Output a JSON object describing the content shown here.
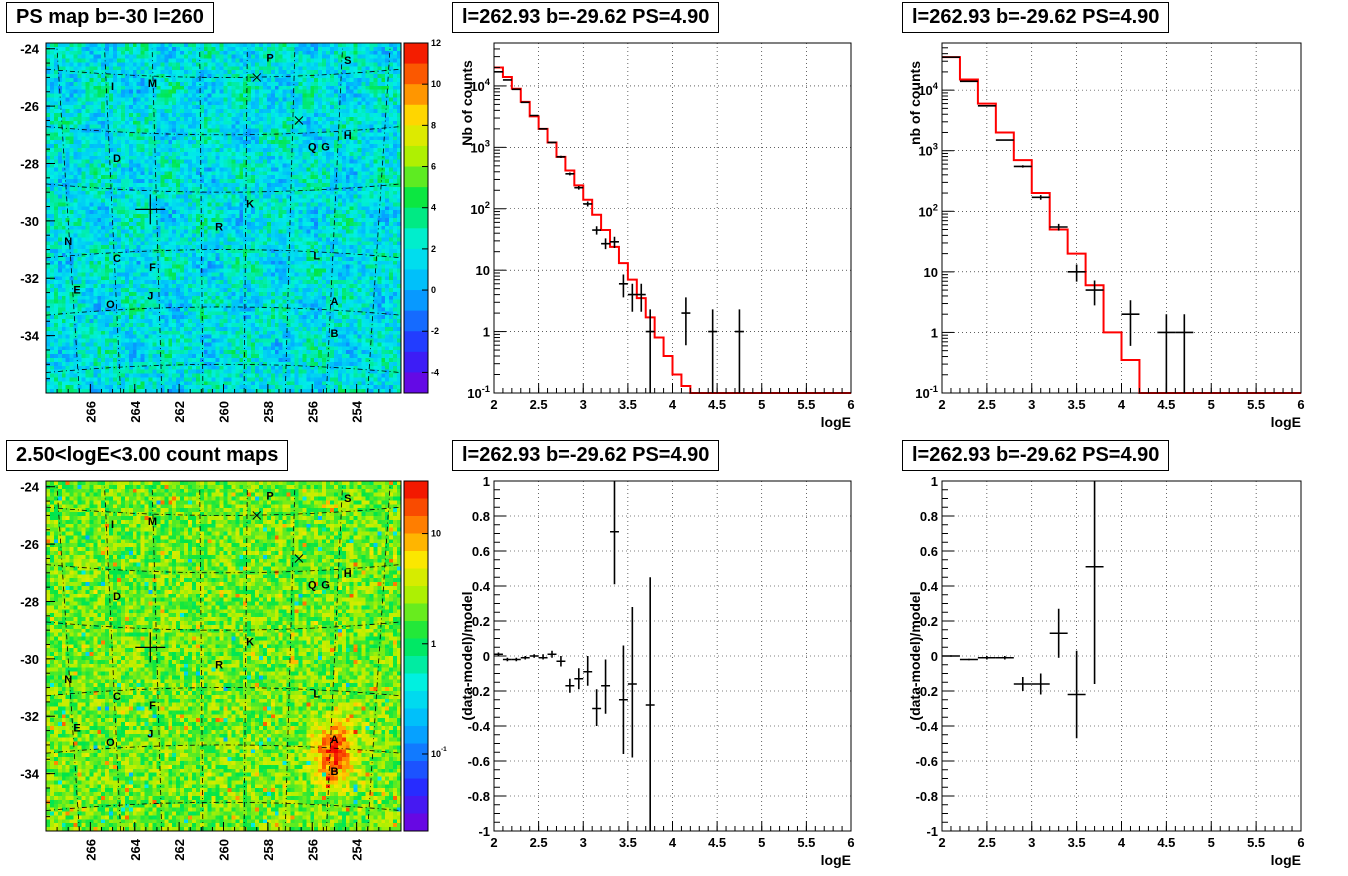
{
  "colors": {
    "model_line": "#ff0000",
    "data_points": "#000000",
    "frame": "#000000",
    "grid": "#000000"
  },
  "chart_data": [
    {
      "id": "ps_map",
      "type": "heatmap",
      "title": "PS map b=-30 l=260",
      "xlim": [
        268,
        252
      ],
      "ylim": [
        -36,
        -23.8
      ],
      "x_ticks": [
        "266",
        "264",
        "262",
        "260",
        "258",
        "256",
        "254"
      ],
      "y_ticks": [
        "-24",
        "-26",
        "-28",
        "-30",
        "-32",
        "-34"
      ],
      "colorbar": {
        "scale": "linear",
        "range": [
          -5,
          12
        ],
        "ticks": [
          "12",
          "10",
          "8",
          "6",
          "4",
          "2",
          "0",
          "-2",
          "-4"
        ]
      },
      "sources": [
        {
          "label": "P",
          "l": 257.9,
          "b": -24.3
        },
        {
          "label": "S",
          "l": 254.4,
          "b": -24.4
        },
        {
          "label": "I",
          "l": 265.0,
          "b": -25.3
        },
        {
          "label": "M",
          "l": 263.2,
          "b": -25.2
        },
        {
          "label": "H",
          "l": 254.4,
          "b": -27.0
        },
        {
          "label": "Q",
          "l": 256.0,
          "b": -27.4
        },
        {
          "label": "G",
          "l": 255.4,
          "b": -27.4
        },
        {
          "label": "D",
          "l": 264.8,
          "b": -27.8
        },
        {
          "label": "K",
          "l": 258.8,
          "b": -29.4
        },
        {
          "label": "N",
          "l": 267.0,
          "b": -30.7
        },
        {
          "label": "R",
          "l": 260.2,
          "b": -30.2
        },
        {
          "label": "C",
          "l": 264.8,
          "b": -31.3
        },
        {
          "label": "F",
          "l": 263.2,
          "b": -31.6
        },
        {
          "label": "L",
          "l": 255.8,
          "b": -31.2
        },
        {
          "label": "E",
          "l": 266.6,
          "b": -32.4
        },
        {
          "label": "J",
          "l": 263.3,
          "b": -32.6
        },
        {
          "label": "O",
          "l": 265.1,
          "b": -32.9
        },
        {
          "label": "A",
          "l": 255.0,
          "b": -32.8
        },
        {
          "label": "B",
          "l": 255.0,
          "b": -33.9
        }
      ],
      "markers": [
        {
          "shape": "x",
          "l": 258.5,
          "b": -25.0
        },
        {
          "shape": "x",
          "l": 256.6,
          "b": -26.5
        },
        {
          "shape": "plus",
          "l": 263.3,
          "b": -29.6
        }
      ]
    },
    {
      "id": "spectrum_left",
      "type": "line",
      "title": "l=262.93 b=-29.62 PS=4.90",
      "xlabel": "logE",
      "ylabel": "Nb of counts",
      "xlim": [
        2,
        6
      ],
      "ylim": [
        0.1,
        50000
      ],
      "y_scale": "log",
      "x_ticks": [
        "2",
        "2.5",
        "3",
        "3.5",
        "4",
        "4.5",
        "5",
        "5.5",
        "6"
      ],
      "y_ticks": [
        "10^-1",
        "1",
        "10",
        "10^2",
        "10^3",
        "10^4"
      ],
      "model": {
        "edges": [
          2.0,
          2.1,
          2.2,
          2.3,
          2.4,
          2.5,
          2.6,
          2.7,
          2.8,
          2.9,
          3.0,
          3.1,
          3.2,
          3.3,
          3.4,
          3.5,
          3.6,
          3.7,
          3.8,
          3.9,
          4.0,
          4.1,
          4.2,
          6.0
        ],
        "values": [
          20000,
          14000,
          9000,
          5500,
          3200,
          2000,
          1200,
          700,
          420,
          240,
          140,
          80,
          45,
          24,
          13,
          7,
          3.5,
          1.7,
          0.8,
          0.4,
          0.2,
          0.13,
          0.1
        ]
      },
      "data": [
        {
          "x": 2.05,
          "y": 17000,
          "ylo": 16800,
          "yhi": 17200,
          "xerr": 0.05
        },
        {
          "x": 2.15,
          "y": 12500,
          "ylo": 12350,
          "yhi": 12650,
          "xerr": 0.05
        },
        {
          "x": 2.25,
          "y": 8800,
          "ylo": 8700,
          "yhi": 8900,
          "xerr": 0.05
        },
        {
          "x": 2.35,
          "y": 5400,
          "ylo": 5320,
          "yhi": 5480,
          "xerr": 0.05
        },
        {
          "x": 2.45,
          "y": 3300,
          "ylo": 3240,
          "yhi": 3360,
          "xerr": 0.05
        },
        {
          "x": 2.55,
          "y": 2000,
          "ylo": 1950,
          "yhi": 2050,
          "xerr": 0.05
        },
        {
          "x": 2.65,
          "y": 1200,
          "ylo": 1160,
          "yhi": 1240,
          "xerr": 0.05
        },
        {
          "x": 2.75,
          "y": 700,
          "ylo": 670,
          "yhi": 730,
          "xerr": 0.05
        },
        {
          "x": 2.85,
          "y": 370,
          "ylo": 350,
          "yhi": 390,
          "xerr": 0.05
        },
        {
          "x": 2.95,
          "y": 220,
          "ylo": 205,
          "yhi": 235,
          "xerr": 0.05
        },
        {
          "x": 3.05,
          "y": 120,
          "ylo": 109,
          "yhi": 131,
          "xerr": 0.05
        },
        {
          "x": 3.15,
          "y": 45,
          "ylo": 38,
          "yhi": 52,
          "xerr": 0.05
        },
        {
          "x": 3.25,
          "y": 27,
          "ylo": 22,
          "yhi": 33,
          "xerr": 0.05
        },
        {
          "x": 3.35,
          "y": 29,
          "ylo": 23,
          "yhi": 35,
          "xerr": 0.05
        },
        {
          "x": 3.45,
          "y": 6,
          "ylo": 3.6,
          "yhi": 8.5,
          "xerr": 0.05
        },
        {
          "x": 3.55,
          "y": 4,
          "ylo": 2.1,
          "yhi": 6,
          "xerr": 0.05
        },
        {
          "x": 3.65,
          "y": 4,
          "ylo": 2.1,
          "yhi": 6,
          "xerr": 0.05
        },
        {
          "x": 3.75,
          "y": 1,
          "ylo": 0.1,
          "yhi": 2.3,
          "xerr": 0.05
        },
        {
          "x": 4.15,
          "y": 2,
          "ylo": 0.6,
          "yhi": 3.6,
          "xerr": 0.05
        },
        {
          "x": 4.45,
          "y": 1,
          "ylo": 0.1,
          "yhi": 2.3,
          "xerr": 0.05
        },
        {
          "x": 4.75,
          "y": 1,
          "ylo": 0.1,
          "yhi": 2.3,
          "xerr": 0.05
        }
      ]
    },
    {
      "id": "spectrum_right",
      "type": "line",
      "title": "l=262.93 b=-29.62 PS=4.90",
      "xlabel": "logE",
      "ylabel": "nb of counts",
      "xlim": [
        2,
        6
      ],
      "ylim": [
        0.1,
        60000
      ],
      "y_scale": "log",
      "x_ticks": [
        "2",
        "2.5",
        "3",
        "3.5",
        "4",
        "4.5",
        "5",
        "5.5",
        "6"
      ],
      "y_ticks": [
        "10^-1",
        "1",
        "10",
        "10^2",
        "10^3",
        "10^4"
      ],
      "model": {
        "edges": [
          2.0,
          2.2,
          2.4,
          2.6,
          2.8,
          3.0,
          3.2,
          3.4,
          3.6,
          3.8,
          4.0,
          4.2,
          6.0
        ],
        "values": [
          35000,
          15000,
          6000,
          2000,
          700,
          200,
          50,
          20,
          6,
          1,
          0.35,
          0.1
        ]
      },
      "data": [
        {
          "x": 2.1,
          "y": 35000,
          "ylo": 34800,
          "yhi": 35200,
          "xerr": 0.1
        },
        {
          "x": 2.3,
          "y": 14000,
          "ylo": 13900,
          "yhi": 14100,
          "xerr": 0.1
        },
        {
          "x": 2.5,
          "y": 5500,
          "ylo": 5420,
          "yhi": 5580,
          "xerr": 0.1
        },
        {
          "x": 2.7,
          "y": 1500,
          "ylo": 1460,
          "yhi": 1540,
          "xerr": 0.1
        },
        {
          "x": 2.9,
          "y": 550,
          "ylo": 525,
          "yhi": 575,
          "xerr": 0.1
        },
        {
          "x": 3.1,
          "y": 170,
          "ylo": 155,
          "yhi": 185,
          "xerr": 0.1
        },
        {
          "x": 3.3,
          "y": 55,
          "ylo": 48,
          "yhi": 62,
          "xerr": 0.1
        },
        {
          "x": 3.5,
          "y": 10,
          "ylo": 6.9,
          "yhi": 13.2,
          "xerr": 0.1
        },
        {
          "x": 3.7,
          "y": 5,
          "ylo": 2.8,
          "yhi": 7.2,
          "xerr": 0.1
        },
        {
          "x": 4.1,
          "y": 2,
          "ylo": 0.6,
          "yhi": 3.4,
          "xerr": 0.1
        },
        {
          "x": 4.5,
          "y": 1,
          "ylo": 0.1,
          "yhi": 2,
          "xerr": 0.1
        },
        {
          "x": 4.7,
          "y": 1,
          "ylo": 0.1,
          "yhi": 2,
          "xerr": 0.1
        }
      ]
    },
    {
      "id": "count_map",
      "type": "heatmap",
      "title": "2.50<logE<3.00 count maps",
      "xlim": [
        268,
        252
      ],
      "ylim": [
        -36,
        -23.8
      ],
      "x_ticks": [
        "266",
        "264",
        "262",
        "260",
        "258",
        "256",
        "254"
      ],
      "y_ticks": [
        "-24",
        "-26",
        "-28",
        "-30",
        "-32",
        "-34"
      ],
      "colorbar": {
        "scale": "log",
        "range": [
          0.02,
          30
        ],
        "ticks": [
          "10",
          "1",
          "10^-1"
        ]
      },
      "sources": [
        {
          "label": "P",
          "l": 257.9,
          "b": -24.3
        },
        {
          "label": "S",
          "l": 254.4,
          "b": -24.4
        },
        {
          "label": "I",
          "l": 265.0,
          "b": -25.3
        },
        {
          "label": "M",
          "l": 263.2,
          "b": -25.2
        },
        {
          "label": "H",
          "l": 254.4,
          "b": -27.0
        },
        {
          "label": "Q",
          "l": 256.0,
          "b": -27.4
        },
        {
          "label": "G",
          "l": 255.4,
          "b": -27.4
        },
        {
          "label": "D",
          "l": 264.8,
          "b": -27.8
        },
        {
          "label": "K",
          "l": 258.8,
          "b": -29.4
        },
        {
          "label": "N",
          "l": 267.0,
          "b": -30.7
        },
        {
          "label": "R",
          "l": 260.2,
          "b": -30.2
        },
        {
          "label": "C",
          "l": 264.8,
          "b": -31.3
        },
        {
          "label": "F",
          "l": 263.2,
          "b": -31.6
        },
        {
          "label": "L",
          "l": 255.8,
          "b": -31.2
        },
        {
          "label": "E",
          "l": 266.6,
          "b": -32.4
        },
        {
          "label": "J",
          "l": 263.3,
          "b": -32.6
        },
        {
          "label": "O",
          "l": 265.1,
          "b": -32.9
        },
        {
          "label": "A",
          "l": 255.0,
          "b": -32.8
        },
        {
          "label": "B",
          "l": 255.0,
          "b": -33.9
        }
      ],
      "markers": [
        {
          "shape": "x",
          "l": 258.5,
          "b": -25.0
        },
        {
          "shape": "x",
          "l": 256.6,
          "b": -26.5
        },
        {
          "shape": "plus",
          "l": 263.3,
          "b": -29.6
        }
      ]
    },
    {
      "id": "residual_left",
      "type": "scatter",
      "title": "l=262.93 b=-29.62 PS=4.90",
      "xlabel": "logE",
      "ylabel": "(data-model)/model",
      "xlim": [
        2,
        6
      ],
      "ylim": [
        -1,
        1
      ],
      "x_ticks": [
        "2",
        "2.5",
        "3",
        "3.5",
        "4",
        "4.5",
        "5",
        "5.5",
        "6"
      ],
      "y_ticks": [
        "-1",
        "-0.8",
        "-0.6",
        "-0.4",
        "-0.2",
        "0",
        "0.2",
        "0.4",
        "0.6",
        "0.8",
        "1"
      ],
      "data": [
        {
          "x": 2.05,
          "y": 0.01,
          "ylo": 0.0,
          "yhi": 0.02,
          "xerr": 0.05
        },
        {
          "x": 2.15,
          "y": -0.02,
          "ylo": -0.03,
          "yhi": -0.01,
          "xerr": 0.05
        },
        {
          "x": 2.25,
          "y": -0.02,
          "ylo": -0.03,
          "yhi": -0.01,
          "xerr": 0.05
        },
        {
          "x": 2.35,
          "y": -0.01,
          "ylo": -0.02,
          "yhi": 0.0,
          "xerr": 0.05
        },
        {
          "x": 2.45,
          "y": 0.0,
          "ylo": -0.01,
          "yhi": 0.01,
          "xerr": 0.05
        },
        {
          "x": 2.55,
          "y": -0.01,
          "ylo": -0.02,
          "yhi": 0.01,
          "xerr": 0.05
        },
        {
          "x": 2.65,
          "y": 0.01,
          "ylo": -0.01,
          "yhi": 0.03,
          "xerr": 0.05
        },
        {
          "x": 2.75,
          "y": -0.03,
          "ylo": -0.06,
          "yhi": 0.0,
          "xerr": 0.05
        },
        {
          "x": 2.85,
          "y": -0.17,
          "ylo": -0.21,
          "yhi": -0.13,
          "xerr": 0.05
        },
        {
          "x": 2.95,
          "y": -0.13,
          "ylo": -0.19,
          "yhi": -0.07,
          "xerr": 0.05
        },
        {
          "x": 3.05,
          "y": -0.09,
          "ylo": -0.17,
          "yhi": 0.0,
          "xerr": 0.05
        },
        {
          "x": 3.15,
          "y": -0.3,
          "ylo": -0.4,
          "yhi": -0.19,
          "xerr": 0.05
        },
        {
          "x": 3.25,
          "y": -0.17,
          "ylo": -0.33,
          "yhi": -0.02,
          "xerr": 0.05
        },
        {
          "x": 3.35,
          "y": 0.71,
          "ylo": 0.41,
          "yhi": 1.0,
          "xerr": 0.05
        },
        {
          "x": 3.45,
          "y": -0.25,
          "ylo": -0.56,
          "yhi": 0.06,
          "xerr": 0.05
        },
        {
          "x": 3.55,
          "y": -0.16,
          "ylo": -0.58,
          "yhi": 0.28,
          "xerr": 0.05
        },
        {
          "x": 3.75,
          "y": -0.28,
          "ylo": -1.0,
          "yhi": 0.45,
          "xerr": 0.05
        }
      ]
    },
    {
      "id": "residual_right",
      "type": "scatter",
      "title": "l=262.93 b=-29.62 PS=4.90",
      "xlabel": "logE",
      "ylabel": "(data-model)/model",
      "xlim": [
        2,
        6
      ],
      "ylim": [
        -1,
        1
      ],
      "x_ticks": [
        "2",
        "2.5",
        "3",
        "3.5",
        "4",
        "4.5",
        "5",
        "5.5",
        "6"
      ],
      "y_ticks": [
        "-1",
        "-0.8",
        "-0.6",
        "-0.4",
        "-0.2",
        "0",
        "0.2",
        "0.4",
        "0.6",
        "0.8",
        "1"
      ],
      "data": [
        {
          "x": 2.1,
          "y": 0.0,
          "ylo": -0.005,
          "yhi": 0.005,
          "xerr": 0.1
        },
        {
          "x": 2.3,
          "y": -0.02,
          "ylo": -0.025,
          "yhi": -0.015,
          "xerr": 0.1
        },
        {
          "x": 2.5,
          "y": -0.01,
          "ylo": -0.02,
          "yhi": 0.0,
          "xerr": 0.1
        },
        {
          "x": 2.7,
          "y": -0.01,
          "ylo": -0.02,
          "yhi": 0.0,
          "xerr": 0.1
        },
        {
          "x": 2.9,
          "y": -0.16,
          "ylo": -0.2,
          "yhi": -0.12,
          "xerr": 0.1
        },
        {
          "x": 3.1,
          "y": -0.16,
          "ylo": -0.22,
          "yhi": -0.1,
          "xerr": 0.1
        },
        {
          "x": 3.3,
          "y": 0.13,
          "ylo": -0.01,
          "yhi": 0.27,
          "xerr": 0.1
        },
        {
          "x": 3.5,
          "y": -0.22,
          "ylo": -0.47,
          "yhi": 0.03,
          "xerr": 0.1
        },
        {
          "x": 3.7,
          "y": 0.51,
          "ylo": -0.16,
          "yhi": 1.0,
          "xerr": 0.1
        }
      ]
    }
  ]
}
